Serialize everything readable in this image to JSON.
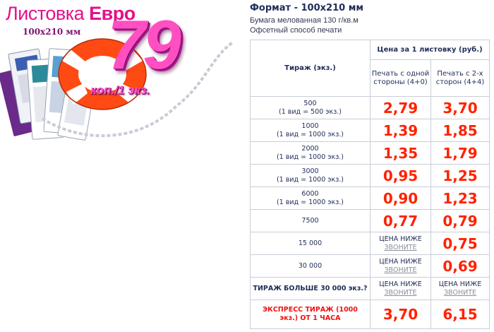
{
  "promo": {
    "title_regular": "Листовка ",
    "title_bold": "Евро",
    "size": "100х210 мм",
    "price": "79",
    "unit": "коп./1 экз.",
    "colors": {
      "brand_pink": "#e3118a",
      "price_pink": "#ff4fc2",
      "ring": "#ff5020"
    }
  },
  "spec": {
    "format": "Формат - 100х210 мм",
    "paper": "Бумага мелованная 130 г/кв.м",
    "method": "Офсетный способ печати"
  },
  "table": {
    "header_qty": "Тираж (экз.)",
    "header_price": "Цена за 1 листовку (руб.)",
    "header_one_side": "Печать с одной стороны (4+0)",
    "header_two_side": "Печать с 2-х сторон (4+4)",
    "lower_label": "ЦЕНА НИЖЕ",
    "call_label": "ЗВОНИТЕ",
    "rows": [
      {
        "qty": "500",
        "qty_note": "(1 вид = 500 экз.)",
        "one_side": "2,79",
        "two_side": "3,70"
      },
      {
        "qty": "1000",
        "qty_note": "(1 вид = 1000 экз.)",
        "one_side": "1,39",
        "two_side": "1,85"
      },
      {
        "qty": "2000",
        "qty_note": "(1 вид = 1000 экз.)",
        "one_side": "1,35",
        "two_side": "1,79"
      },
      {
        "qty": "3000",
        "qty_note": "(1 вид = 1000 экз.)",
        "one_side": "0,95",
        "two_side": "1,25"
      },
      {
        "qty": "6000",
        "qty_note": "(1 вид = 1000 экз.)",
        "one_side": "0,90",
        "two_side": "1,23"
      },
      {
        "qty": "7500",
        "one_side": "0,77",
        "two_side": "0,79"
      },
      {
        "qty": "15 000",
        "two_side": "0,75"
      },
      {
        "qty": "30 000",
        "two_side": "0,69"
      },
      {
        "qty": "ТИРАЖ БОЛЬШЕ 30 000 экз.?"
      },
      {
        "qty": "ЭКСПРЕСС ТИРАЖ (1000 экз.) ОТ 1 ЧАСА",
        "one_side": "3,70",
        "two_side": "6,15"
      }
    ],
    "colors": {
      "price": "#ff2200",
      "express": "#ee1111",
      "border": "#c9cdd6"
    }
  }
}
